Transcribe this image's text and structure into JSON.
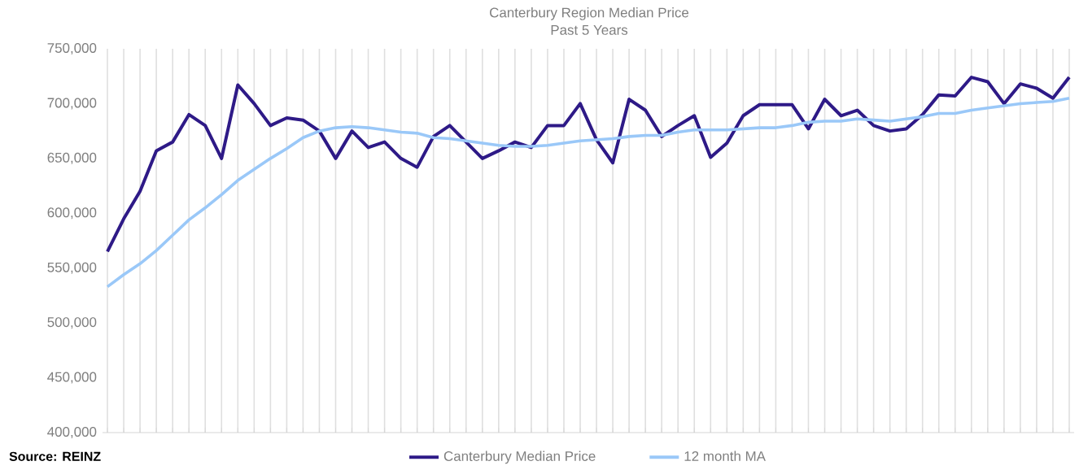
{
  "chart_data": {
    "type": "line",
    "title": "Canterbury Region Median Price",
    "subtitle": "Past 5 Years",
    "categories": [
      null,
      null,
      null,
      null,
      null,
      null,
      null,
      null,
      null,
      null,
      null,
      null,
      null,
      null,
      null,
      null,
      null,
      null,
      null,
      null,
      null,
      null,
      null,
      null,
      null,
      null,
      null,
      null,
      null,
      null,
      null,
      null,
      null,
      null,
      null,
      null,
      null,
      null,
      null,
      null,
      null,
      null,
      null,
      null,
      null,
      null,
      null,
      null,
      null,
      null,
      null,
      null,
      null,
      null,
      null,
      null,
      null,
      null,
      null,
      null
    ],
    "series": [
      {
        "name": "Canterbury Median Price",
        "color": "#2e1a87",
        "values": [
          565000,
          595000,
          620000,
          657000,
          665000,
          690000,
          680000,
          650000,
          717000,
          700000,
          680000,
          687000,
          685000,
          675000,
          650000,
          675000,
          660000,
          665000,
          650000,
          642000,
          670000,
          680000,
          665000,
          650000,
          657000,
          665000,
          660000,
          680000,
          680000,
          700000,
          667000,
          646000,
          704000,
          694000,
          670000,
          680000,
          689000,
          651000,
          664000,
          689000,
          699000,
          699000,
          699000,
          677000,
          704000,
          689000,
          694000,
          680000,
          675000,
          677000,
          690000,
          708000,
          707000,
          724000,
          720000,
          700000,
          718000,
          714000,
          705000,
          724000
        ]
      },
      {
        "name": "12 month MA",
        "color": "#9ac8f8",
        "values": [
          533000,
          544000,
          554000,
          566000,
          580000,
          594000,
          605000,
          617000,
          630000,
          640000,
          650000,
          659000,
          669000,
          675000,
          678000,
          679000,
          678000,
          676000,
          674000,
          673000,
          669000,
          668000,
          666000,
          664000,
          662000,
          661000,
          661000,
          662000,
          664000,
          666000,
          667000,
          668000,
          670000,
          671000,
          671000,
          674000,
          676000,
          676000,
          676000,
          677000,
          678000,
          678000,
          680000,
          683000,
          684000,
          684000,
          686000,
          685000,
          684000,
          686000,
          688000,
          691000,
          691000,
          694000,
          696000,
          698000,
          700000,
          701000,
          702000,
          705000
        ]
      }
    ],
    "ylim": [
      400000,
      750000
    ],
    "yticks": [
      {
        "value": 400000,
        "label": "400,000"
      },
      {
        "value": 450000,
        "label": "450,000"
      },
      {
        "value": 500000,
        "label": "500,000"
      },
      {
        "value": 550000,
        "label": "550,000"
      },
      {
        "value": 600000,
        "label": "600,000"
      },
      {
        "value": 650000,
        "label": "650,000"
      },
      {
        "value": 700000,
        "label": "700,000"
      },
      {
        "value": 750000,
        "label": "750,000"
      }
    ],
    "grid": "x",
    "legend": "bottom",
    "tick_labels": "y",
    "marker": "none",
    "line_style": "solid",
    "annotations": [
      "Source: REINZ"
    ]
  }
}
